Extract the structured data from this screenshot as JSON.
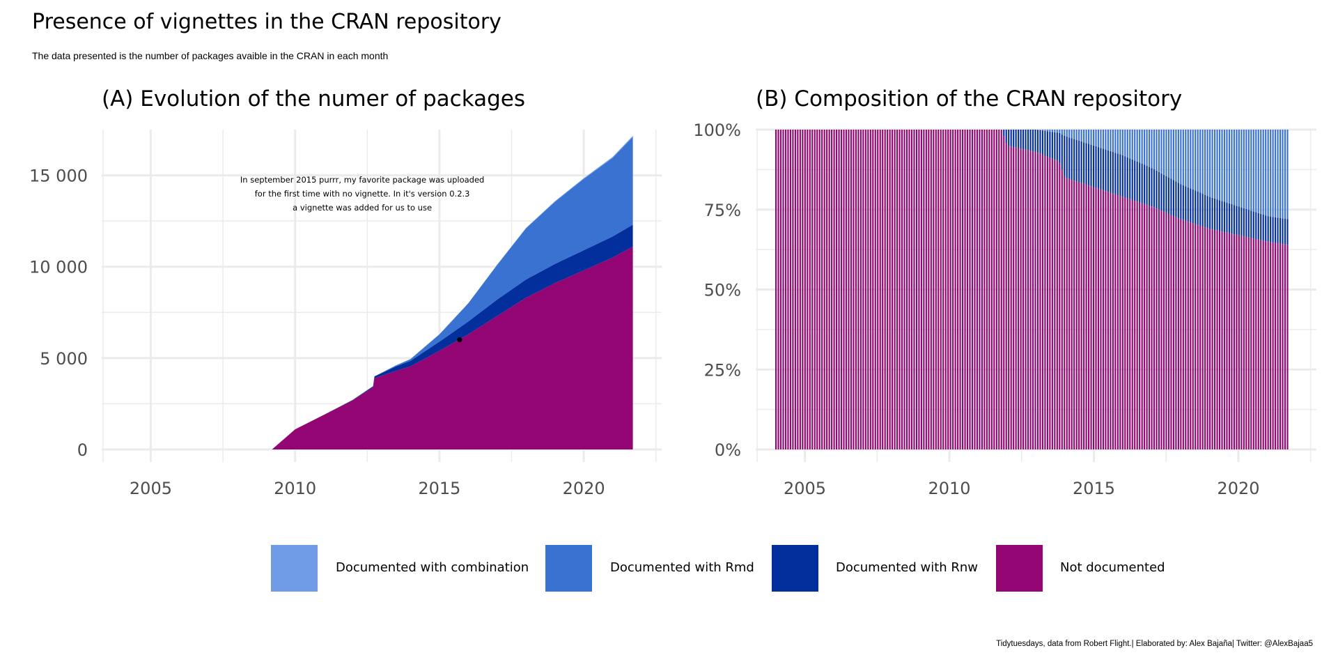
{
  "title": "Presence of vignettes in the CRAN repository",
  "subtitle": "The data presented is the number of packages avaible in the CRAN in each month",
  "caption": "Tidytuesdays, data from  Robert Flight.| Elaborated by: Alex Bajaña| Twitter: @AlexBajaa5",
  "colors": {
    "combination": "#6f9be6",
    "rmd": "#3a72d1",
    "rnw": "#022f9c",
    "not_documented": "#930573",
    "grid": "#ebebeb",
    "tick_text": "#4d4d4d"
  },
  "legend": [
    {
      "label": "Documented with combination",
      "color": "#6f9be6"
    },
    {
      "label": "Documented with Rmd",
      "color": "#3a72d1"
    },
    {
      "label": "Documented with Rnw",
      "color": "#022f9c"
    },
    {
      "label": "Not documented",
      "color": "#930573"
    }
  ],
  "chart_data": [
    {
      "type": "area",
      "title": "(A) Evolution of the numer of packages",
      "xlabel": "",
      "ylabel": "",
      "xlim": [
        2003.3,
        2022.7
      ],
      "ylim": [
        0,
        17500
      ],
      "x_ticks": [
        2005,
        2010,
        2015,
        2020
      ],
      "x_tick_labels": [
        "2005",
        "2010",
        "2015",
        "2020"
      ],
      "y_ticks": [
        0,
        5000,
        10000,
        15000
      ],
      "y_tick_labels": [
        "0",
        "5 000",
        "10 000",
        "15 000"
      ],
      "stacked": true,
      "x": [
        2009.2,
        2010,
        2011,
        2012,
        2012.7,
        2012.75,
        2013.5,
        2014,
        2015,
        2016,
        2017,
        2018,
        2019,
        2020,
        2021,
        2021.7
      ],
      "series": [
        {
          "name": "Not documented",
          "values": [
            0,
            1100,
            1900,
            2700,
            3400,
            3900,
            4300,
            4550,
            5400,
            6300,
            7300,
            8300,
            9100,
            9800,
            10500,
            11100
          ]
        },
        {
          "name": "Documented with Rnw",
          "values": [
            0,
            0,
            0,
            20,
            60,
            100,
            250,
            300,
            500,
            700,
            900,
            1000,
            1050,
            1100,
            1150,
            1200
          ]
        },
        {
          "name": "Documented with Rmd",
          "values": [
            0,
            0,
            0,
            0,
            0,
            0,
            50,
            100,
            400,
            1000,
            1900,
            2800,
            3400,
            3900,
            4300,
            4800
          ]
        },
        {
          "name": "Documented with combination",
          "values": [
            0,
            0,
            0,
            0,
            0,
            0,
            0,
            0,
            0,
            0,
            10,
            20,
            30,
            40,
            50,
            60
          ]
        }
      ],
      "annotation": {
        "lines": [
          "In september 2015 purrr, my favorite package was uploaded",
          "for the first time with no vignette. In it's version 0.2.3",
          "a vignette was added for us to use"
        ],
        "x": 2011,
        "y": 14600
      },
      "highlight_point": {
        "x": 2015.7,
        "y": 6000
      }
    },
    {
      "type": "bar",
      "title": "(B) Composition of the CRAN repository",
      "xlabel": "",
      "ylabel": "",
      "xlim": [
        2003.3,
        2022.7
      ],
      "ylim": [
        0,
        1
      ],
      "x_ticks": [
        2005,
        2010,
        2015,
        2020
      ],
      "x_tick_labels": [
        "2005",
        "2010",
        "2015",
        "2020"
      ],
      "y_ticks": [
        0,
        0.25,
        0.5,
        0.75,
        1
      ],
      "y_tick_labels": [
        "0%",
        "25%",
        "50%",
        "75%",
        "100%"
      ],
      "stacked": "proportion",
      "x_range": [
        2004.0,
        2021.7
      ],
      "bar_count": 212,
      "share_points": {
        "x": [
          2004,
          2011.8,
          2012,
          2013,
          2013.8,
          2014,
          2015,
          2016,
          2017,
          2018,
          2019,
          2020,
          2021,
          2021.7
        ],
        "not_documented": [
          1,
          1,
          0.95,
          0.93,
          0.9,
          0.85,
          0.82,
          0.79,
          0.76,
          0.72,
          0.69,
          0.67,
          0.65,
          0.64
        ],
        "rnw": [
          0,
          0,
          0.05,
          0.07,
          0.09,
          0.13,
          0.13,
          0.13,
          0.12,
          0.11,
          0.1,
          0.09,
          0.08,
          0.08
        ],
        "rmd": [
          0,
          0,
          0,
          0,
          0.01,
          0.02,
          0.05,
          0.08,
          0.12,
          0.17,
          0.21,
          0.24,
          0.27,
          0.28
        ]
      }
    }
  ]
}
